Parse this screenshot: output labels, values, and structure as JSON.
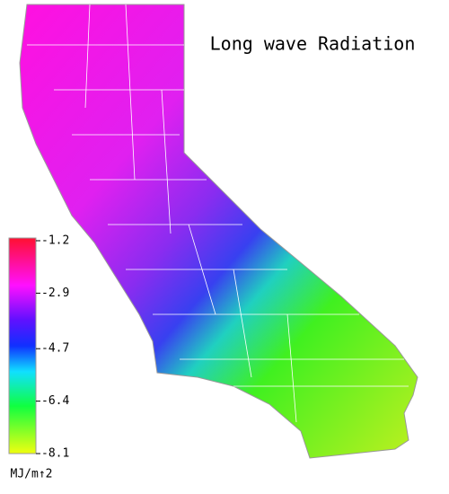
{
  "title": "Long wave Radiation",
  "colorbar": {
    "ticks": [
      -1.2,
      -2.9,
      -4.7,
      -6.4,
      -8.1
    ],
    "unit": "MJ/m↑2"
  }
}
